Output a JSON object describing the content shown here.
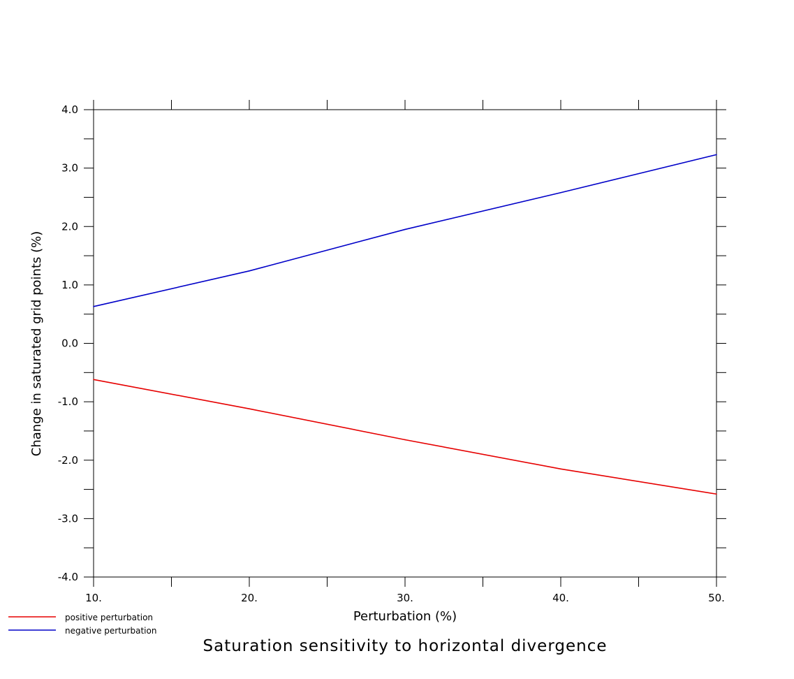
{
  "chart_data": {
    "type": "line",
    "title": "Saturation sensitivity to horizontal divergence",
    "xlabel": "Perturbation (%)",
    "ylabel": "Change in saturated grid points (%)",
    "xlim": [
      10,
      50
    ],
    "ylim": [
      -4.0,
      4.0
    ],
    "x_ticks": [
      10,
      20,
      30,
      40,
      50
    ],
    "x_tick_labels": [
      "10.",
      "20.",
      "30.",
      "40.",
      "50."
    ],
    "y_ticks": [
      -4.0,
      -3.0,
      -2.0,
      -1.0,
      0.0,
      1.0,
      2.0,
      3.0,
      4.0
    ],
    "y_tick_labels": [
      "-4.0",
      "-3.0",
      "-2.0",
      "-1.0",
      "0.0",
      "1.0",
      "2.0",
      "3.0",
      "4.0"
    ],
    "x": [
      10,
      20,
      30,
      40,
      50
    ],
    "series": [
      {
        "name": "positive perturbation",
        "color": "#e60000",
        "values": [
          -0.62,
          -1.12,
          -1.65,
          -2.15,
          -2.58
        ]
      },
      {
        "name": "negative perturbation",
        "color": "#0000c8",
        "values": [
          0.63,
          1.24,
          1.95,
          2.58,
          3.23
        ]
      }
    ],
    "grid": false,
    "legend_position": "bottom-left"
  }
}
